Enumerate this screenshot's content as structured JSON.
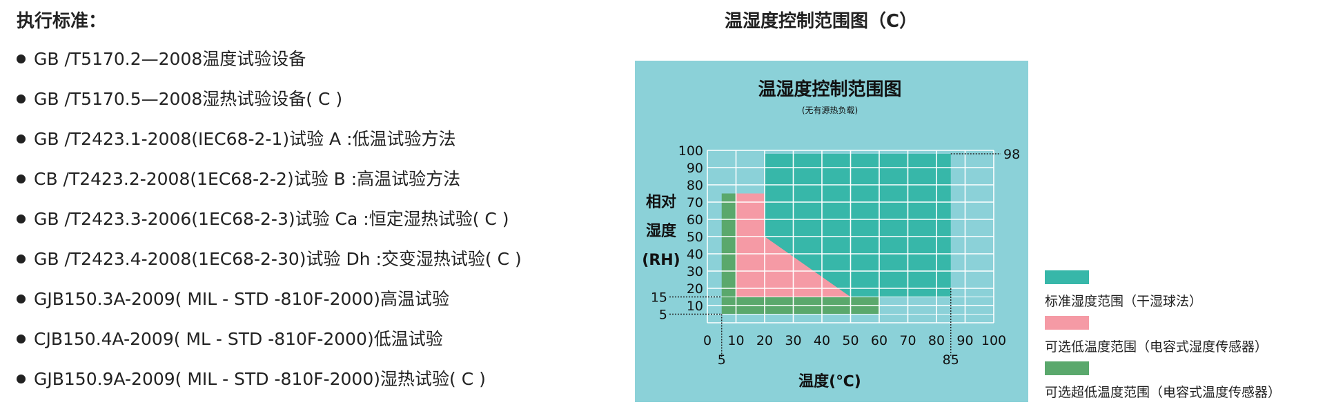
{
  "standards": {
    "heading": "执行标准：",
    "items": [
      "GB /T5170.2—2008温度试验设备",
      "GB /T5170.5—2008湿热试验设备( C )",
      "GB /T2423.1-2008(IEC68-2-1)试验 A :低温试验方法",
      "CB /T2423.2-2008(1EC68-2-2)试验 B :高温试验方法",
      "GB /T2423.3-2006(1EC68-2-3)试验 Ca :恒定湿热试验( C )",
      "GB /T2423.4-2008(1EC68-2-30)试验 Dh :交变湿热试验( C )",
      "GJB150.3A-2009( MIL - STD -810F-2000)高温试验",
      "CJB150.4A-2009( ML - STD -810F-2000)低温试验",
      "GJB150.9A-2009( MIL - STD -810F-2000)湿热试验( C )"
    ]
  },
  "right_title": "温湿度控制范围图（C）",
  "chart_data": {
    "type": "area",
    "title": "温湿度控制范围图",
    "subtitle": "(无有源热负载)",
    "xlabel": "温度(℃)",
    "ylabel": [
      "相对",
      "湿度",
      "(RH)"
    ],
    "xlim": [
      0,
      100
    ],
    "ylim": [
      0,
      100
    ],
    "x_ticks": [
      0,
      10,
      20,
      30,
      40,
      50,
      60,
      70,
      80,
      90,
      100
    ],
    "y_ticks": [
      10,
      20,
      30,
      40,
      50,
      60,
      70,
      80,
      90,
      100
    ],
    "grid": true,
    "background_color": "#8bd1d8",
    "series": [
      {
        "name": "标准湿度范围（干湿球法）",
        "color": "#37b7a9",
        "polygon": [
          [
            20,
            15
          ],
          [
            20,
            98
          ],
          [
            85,
            98
          ],
          [
            85,
            15
          ]
        ]
      },
      {
        "name": "可选低温度范围（电容式湿度传感器）",
        "color": "#f59aa5",
        "polygon": [
          [
            10,
            15
          ],
          [
            10,
            75
          ],
          [
            20,
            75
          ],
          [
            20,
            50
          ],
          [
            50,
            15
          ]
        ]
      },
      {
        "name": "可选超低温度范围（电容式温度传感器）",
        "color": "#5aa86c",
        "polygon": [
          [
            5,
            5
          ],
          [
            5,
            75
          ],
          [
            10,
            75
          ],
          [
            10,
            15
          ],
          [
            60,
            15
          ],
          [
            60,
            5
          ]
        ]
      }
    ],
    "annotations": [
      {
        "axis": "x",
        "value": 5,
        "label": "5"
      },
      {
        "axis": "x",
        "value": 85,
        "label": "85"
      },
      {
        "axis": "y",
        "value": 15,
        "label": "15"
      },
      {
        "axis": "y",
        "value": 5,
        "label": "5"
      },
      {
        "axis": "y",
        "value": 98,
        "label": "98"
      }
    ]
  },
  "legend": [
    {
      "label": "标准湿度范围（干湿球法）",
      "color": "#37b7a9"
    },
    {
      "label": "可选低温度范围（电容式湿度传感器）",
      "color": "#f59aa5"
    },
    {
      "label": "可选超低温度范围（电容式温度传感器）",
      "color": "#5aa86c"
    }
  ]
}
